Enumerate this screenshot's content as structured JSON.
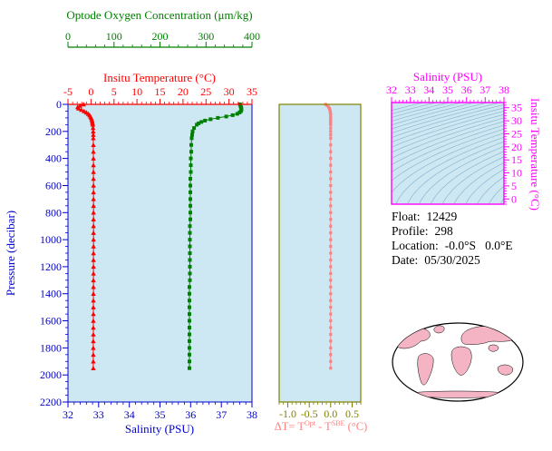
{
  "colors": {
    "background": "#ffffff",
    "panel_fill": "#cde8f3",
    "oxygen": "#008000",
    "temperature": "#ff0000",
    "salinity": "#0000cd",
    "pressure": "#0000cd",
    "delta_frame": "#808000",
    "delta_series": "#ff8080",
    "ts_frame": "#ff00ff",
    "contour": "#8fb6cf",
    "land": "#f4b4c4",
    "map_outline": "#000000"
  },
  "main_plot": {
    "pressure_axis": {
      "label": "Pressure (decibar)",
      "ticks": [
        0,
        200,
        400,
        600,
        800,
        1000,
        1200,
        1400,
        1600,
        1800,
        2000,
        2200
      ],
      "range": [
        0,
        2200
      ]
    },
    "oxygen_axis": {
      "label": "Optode Oxygen Concentration (μm/kg)",
      "ticks": [
        0,
        100,
        200,
        300,
        400
      ],
      "range": [
        0,
        400
      ]
    },
    "temperature_axis": {
      "label": "Insitu Temperature (°C)",
      "ticks": [
        -5,
        0,
        5,
        10,
        15,
        20,
        25,
        30,
        35
      ],
      "range": [
        -5,
        35
      ]
    },
    "salinity_axis": {
      "label": "Salinity (PSU)",
      "ticks": [
        32,
        33,
        34,
        35,
        36,
        37,
        38
      ],
      "range": [
        32,
        38
      ]
    }
  },
  "delta_plot": {
    "label_parts": {
      "prefix": "ΔT= T",
      "sup1": "Opt",
      "mid": " - T",
      "sup2": "SBE",
      "suffix": " (°C)"
    },
    "ticks": [
      "-1.0",
      "-0.5",
      "0.0",
      "0.5"
    ],
    "range": [
      -1.2,
      0.7
    ]
  },
  "ts_plot": {
    "salinity_label": "Salinity (PSU)",
    "temperature_label": "Insitu Temperature (°C)",
    "salinity_ticks": [
      32,
      33,
      34,
      35,
      36,
      37,
      38
    ],
    "salinity_range": [
      32,
      38
    ],
    "temperature_ticks": [
      0,
      5,
      10,
      15,
      20,
      25,
      30,
      35
    ],
    "temperature_range": [
      -2,
      37
    ],
    "isopycnals": {
      "sigma_min": 18,
      "sigma_max": 31,
      "sigma_step": 0.5
    }
  },
  "info": {
    "float_label": "Float:",
    "float_value": "12429",
    "profile_label": "Profile:",
    "profile_value": "298",
    "location_label": "Location:",
    "location_value": "-0.0°S   0.0°E",
    "date_label": "Date:",
    "date_value": "05/30/2025"
  },
  "chart_data": [
    {
      "type": "line",
      "title": "Vertical profiles vs pressure",
      "ylabel": "Pressure (decibar)",
      "ylim": [
        0,
        2200
      ],
      "pressure": [
        0,
        10,
        20,
        30,
        40,
        50,
        60,
        70,
        80,
        90,
        100,
        110,
        120,
        130,
        140,
        150,
        175,
        200,
        225,
        250,
        300,
        350,
        400,
        450,
        500,
        550,
        600,
        650,
        700,
        750,
        800,
        850,
        900,
        950,
        1000,
        1050,
        1100,
        1150,
        1200,
        1250,
        1300,
        1350,
        1400,
        1450,
        1500,
        1550,
        1600,
        1650,
        1700,
        1750,
        1800,
        1850,
        1900,
        1950
      ],
      "series": [
        {
          "name": "Insitu Temperature (°C)",
          "color": "#ff0000",
          "marker": "triangle",
          "axis_range": [
            -5,
            35
          ],
          "values": [
            -1.6,
            -2.4,
            -2.9,
            -2.7,
            -2.1,
            -1.5,
            -1.0,
            -0.6,
            -0.3,
            -0.1,
            0.05,
            0.15,
            0.25,
            0.3,
            0.35,
            0.4,
            0.45,
            0.48,
            0.5,
            0.5,
            0.52,
            0.52,
            0.53,
            0.53,
            0.54,
            0.54,
            0.55,
            0.55,
            0.55,
            0.55,
            0.55,
            0.55,
            0.55,
            0.55,
            0.55,
            0.55,
            0.54,
            0.54,
            0.54,
            0.54,
            0.53,
            0.53,
            0.53,
            0.52,
            0.52,
            0.52,
            0.51,
            0.51,
            0.51,
            0.5,
            0.5,
            0.5,
            0.5,
            0.5
          ]
        },
        {
          "name": "Optode Oxygen Concentration (μm/kg)",
          "color": "#008000",
          "marker": "square",
          "axis_range": [
            0,
            400
          ],
          "values": [
            374,
            375,
            376,
            377,
            377,
            376,
            373,
            368,
            358,
            344,
            326,
            310,
            298,
            290,
            284,
            280,
            274,
            271,
            270,
            269,
            268,
            268,
            267,
            267,
            267,
            266,
            266,
            266,
            266,
            266,
            266,
            266,
            265,
            265,
            265,
            265,
            265,
            265,
            265,
            265,
            265,
            264,
            264,
            264,
            264,
            264,
            264,
            264,
            264,
            264,
            264,
            264,
            264,
            264
          ]
        }
      ]
    },
    {
      "type": "line",
      "title": "ΔT = TOpt - TSBE (°C) vs pressure",
      "xlim": [
        -1.2,
        0.7
      ],
      "ylim": [
        0,
        2200
      ],
      "pressure": [
        0,
        10,
        20,
        30,
        40,
        50,
        60,
        70,
        80,
        90,
        100,
        110,
        120,
        130,
        140,
        150,
        175,
        200,
        225,
        250,
        300,
        350,
        400,
        450,
        500,
        550,
        600,
        650,
        700,
        750,
        800,
        850,
        900,
        950,
        1000,
        1050,
        1100,
        1150,
        1200,
        1250,
        1300,
        1350,
        1400,
        1450,
        1500,
        1550,
        1600,
        1650,
        1700,
        1750,
        1800,
        1850,
        1900,
        1950
      ],
      "series": [
        {
          "name": "ΔT",
          "color": "#ff8080",
          "marker": "square",
          "axis_range": [
            -1.2,
            0.7
          ],
          "values": [
            -0.12,
            -0.08,
            -0.05,
            -0.03,
            -0.02,
            -0.01,
            -0.01,
            0.0,
            0.0,
            0.0,
            0.0,
            0.0,
            0.0,
            0.0,
            0.0,
            0.0,
            0.0,
            0.0,
            0.0,
            0.0,
            0.0,
            0.0,
            0.0,
            0.0,
            0.0,
            0.0,
            0.0,
            0.0,
            0.0,
            0.0,
            0.0,
            0.0,
            0.0,
            0.0,
            0.0,
            0.0,
            0.0,
            0.0,
            0.0,
            0.0,
            0.0,
            0.0,
            0.0,
            0.0,
            0.0,
            0.0,
            0.0,
            0.0,
            0.0,
            0.0,
            0.0,
            0.0,
            0.0,
            0.0
          ]
        }
      ]
    },
    {
      "type": "line",
      "title": "T-S diagram",
      "xlabel": "Salinity (PSU)",
      "ylabel": "Insitu Temperature (°C)",
      "xlim": [
        32,
        38
      ],
      "ylim": [
        -2,
        37
      ],
      "series": [],
      "note": "background family of isopycnal contour curves only"
    }
  ]
}
